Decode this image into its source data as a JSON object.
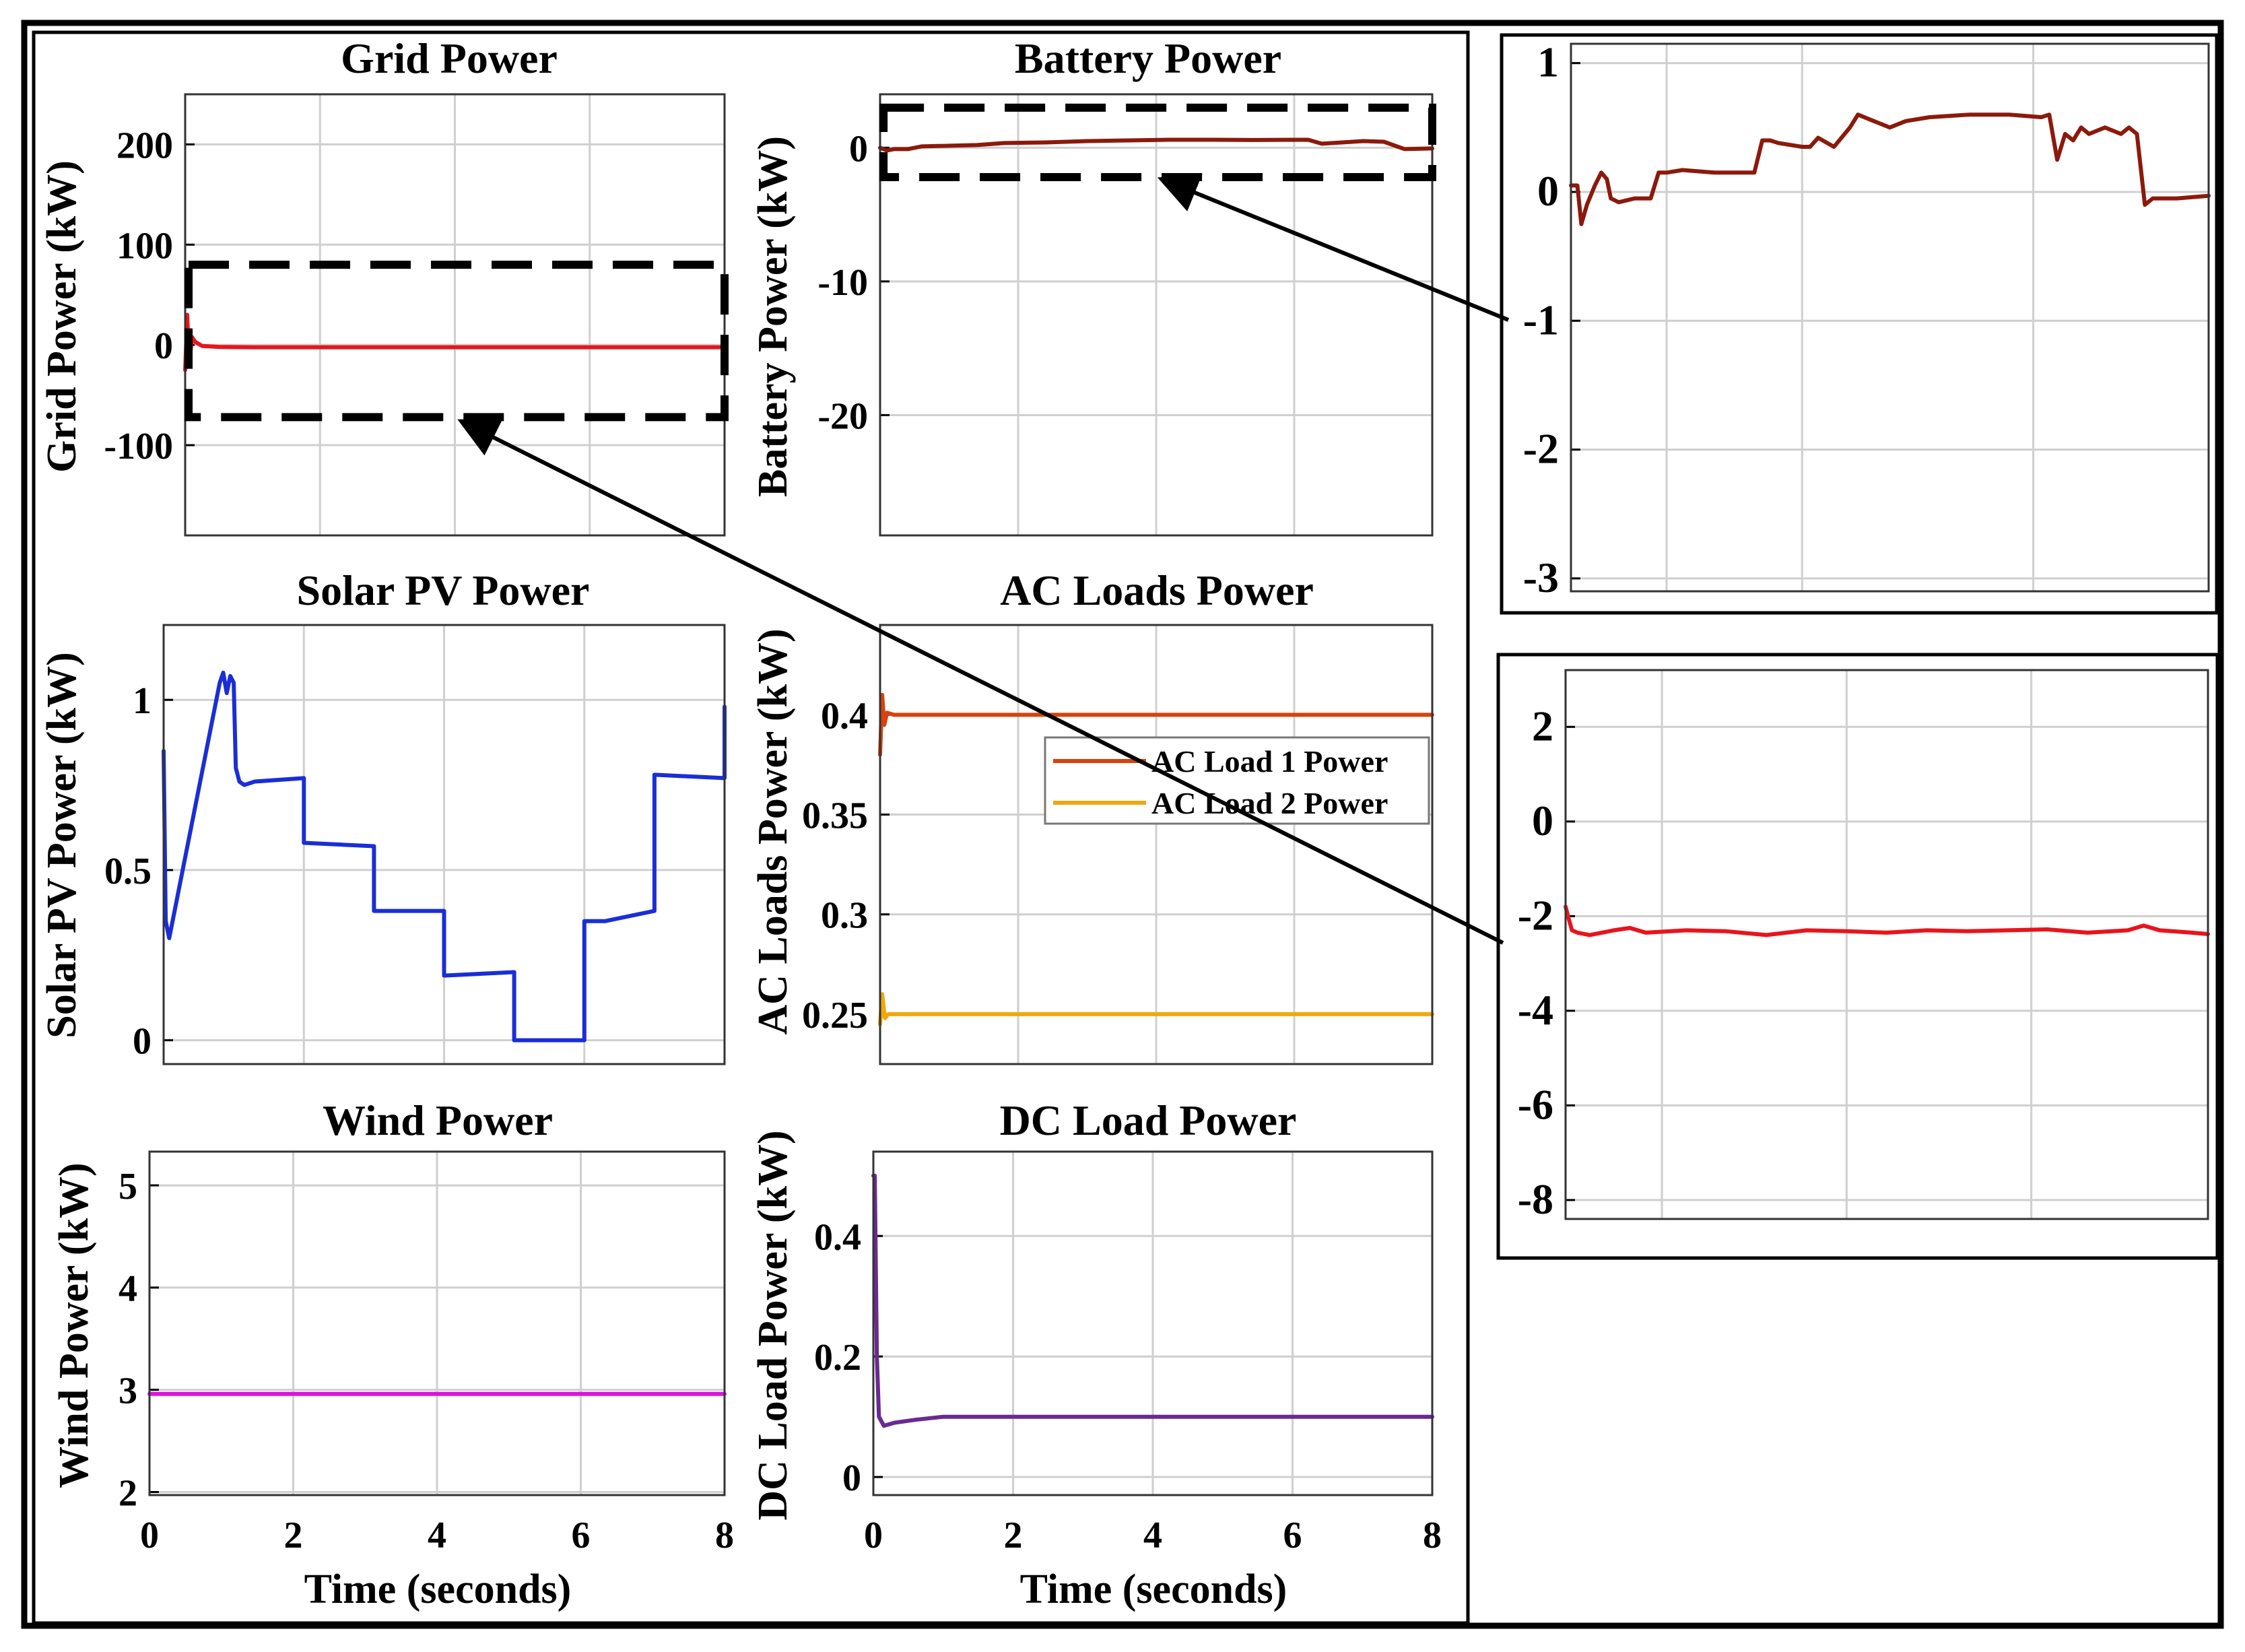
{
  "figure": {
    "panels": {
      "grid": {
        "title": "Grid Power",
        "ylabel": "Grid Power (kW)"
      },
      "battery": {
        "title": "Battery Power",
        "ylabel": "Battery Power (kW)"
      },
      "solar": {
        "title": "Solar PV Power",
        "ylabel": "Solar PV Power (kW)"
      },
      "ac": {
        "title": "AC Loads Power",
        "ylabel": "AC Loads Power (kW)"
      },
      "wind": {
        "title": "Wind Power",
        "ylabel": "Wind Power (kW)"
      },
      "dc": {
        "title": "DC Load Power",
        "ylabel": "DC Load Power (kW)"
      }
    },
    "xlabel": "Time (seconds)"
  },
  "chart_data": [
    {
      "id": "grid",
      "type": "line",
      "title": "Grid Power",
      "xlabel": "",
      "ylabel": "Grid Power (kW)",
      "xlim": [
        0,
        8
      ],
      "ylim": [
        -190,
        250
      ],
      "yticks": [
        -100,
        0,
        100,
        200
      ],
      "xticks": [
        0,
        2,
        4,
        6,
        8
      ],
      "grid": true,
      "series": [
        {
          "name": "Grid Power",
          "color": "#e8141c",
          "x": [
            0,
            0.03,
            0.06,
            0.1,
            0.15,
            0.25,
            0.5,
            1,
            2,
            4,
            6,
            8
          ],
          "y": [
            -25,
            30,
            -20,
            8,
            3,
            -1,
            -2,
            -2.3,
            -2.3,
            -2.3,
            -2.3,
            -2.3
          ]
        }
      ],
      "zoom_box": {
        "x": [
          0.05,
          8
        ],
        "y": [
          -72,
          80
        ]
      }
    },
    {
      "id": "battery",
      "type": "line",
      "title": "Battery Power",
      "xlabel": "",
      "ylabel": "Battery Power (kW)",
      "xlim": [
        0,
        8
      ],
      "ylim": [
        -29,
        4
      ],
      "yticks": [
        -20,
        -10,
        0
      ],
      "xticks": [
        0,
        2,
        4,
        6,
        8
      ],
      "grid": true,
      "series": [
        {
          "name": "Battery Power",
          "color": "#8b1a0c",
          "x": [
            0,
            0.1,
            0.2,
            0.4,
            0.6,
            1.0,
            1.4,
            1.8,
            2.4,
            3.0,
            3.6,
            4.2,
            4.8,
            5.4,
            6.2,
            6.4,
            7.0,
            7.3,
            7.6,
            8
          ],
          "y": [
            0,
            -0.2,
            -0.1,
            -0.1,
            0.1,
            0.15,
            0.2,
            0.35,
            0.4,
            0.5,
            0.55,
            0.6,
            0.6,
            0.58,
            0.6,
            0.3,
            0.5,
            0.45,
            -0.1,
            -0.05
          ]
        }
      ],
      "zoom_box": {
        "x": [
          0.05,
          8
        ],
        "y": [
          -2.2,
          3
        ]
      }
    },
    {
      "id": "solar",
      "type": "line",
      "title": "Solar PV Power",
      "xlabel": "",
      "ylabel": "Solar PV Power (kW)",
      "xlim": [
        0,
        8
      ],
      "ylim": [
        -0.07,
        1.22
      ],
      "yticks": [
        0,
        0.5,
        1
      ],
      "ytick_labels": [
        "0",
        "0.5",
        "1"
      ],
      "xticks": [
        0,
        2,
        4,
        6,
        8
      ],
      "grid": true,
      "series": [
        {
          "name": "Solar PV Power",
          "color": "#1a2ed6",
          "x": [
            0,
            0.03,
            0.08,
            0.8,
            0.85,
            0.9,
            0.95,
            1.0,
            1.03,
            1.08,
            1.15,
            1.3,
            2.0,
            2.0,
            3.0,
            3.0,
            4.0,
            4.0,
            5.0,
            5.0,
            6.0,
            6.0,
            6.3,
            7.0,
            7.0,
            8.0,
            8.0
          ],
          "y": [
            0.85,
            0.35,
            0.3,
            1.05,
            1.08,
            1.02,
            1.07,
            1.05,
            0.8,
            0.76,
            0.75,
            0.76,
            0.77,
            0.58,
            0.57,
            0.38,
            0.38,
            0.19,
            0.2,
            0.0,
            0.0,
            0.35,
            0.35,
            0.38,
            0.78,
            0.77,
            0.98
          ]
        }
      ]
    },
    {
      "id": "ac",
      "type": "line",
      "title": "AC Loads Power",
      "xlabel": "",
      "ylabel": "AC Loads Power (kW)",
      "xlim": [
        0,
        8
      ],
      "ylim": [
        0.225,
        0.445
      ],
      "yticks": [
        0.25,
        0.3,
        0.35,
        0.4
      ],
      "ytick_labels": [
        "0.25",
        "0.3",
        "0.35",
        "0.4"
      ],
      "xticks": [
        0,
        2,
        4,
        6,
        8
      ],
      "grid": true,
      "legend": {
        "location": "right",
        "entries": [
          "AC Load 1 Power",
          "AC Load 2 Power"
        ]
      },
      "series": [
        {
          "name": "AC Load 1 Power",
          "color": "#d5430e",
          "x": [
            0,
            0.03,
            0.06,
            0.1,
            0.2,
            8
          ],
          "y": [
            0.38,
            0.41,
            0.395,
            0.401,
            0.4,
            0.4
          ]
        },
        {
          "name": "AC Load 2 Power",
          "color": "#eea80f",
          "x": [
            0,
            0.03,
            0.07,
            0.12,
            8
          ],
          "y": [
            0.245,
            0.26,
            0.248,
            0.25,
            0.25
          ]
        }
      ]
    },
    {
      "id": "wind",
      "type": "line",
      "title": "Wind Power",
      "xlabel": "Time (seconds)",
      "ylabel": "Wind Power (kW)",
      "xlim": [
        0,
        8
      ],
      "ylim": [
        1.97,
        5.33
      ],
      "yticks": [
        2,
        3,
        4,
        5
      ],
      "xticks": [
        0,
        2,
        4,
        6,
        8
      ],
      "grid": true,
      "series": [
        {
          "name": "Wind Power",
          "color": "#e010e0",
          "x": [
            0,
            8
          ],
          "y": [
            2.96,
            2.96
          ]
        }
      ]
    },
    {
      "id": "dc",
      "type": "line",
      "title": "DC Load Power",
      "xlabel": "Time (seconds)",
      "ylabel": "DC Load Power (kW)",
      "xlim": [
        0,
        8
      ],
      "ylim": [
        -0.03,
        0.54
      ],
      "yticks": [
        0,
        0.2,
        0.4
      ],
      "ytick_labels": [
        "0",
        "0.2",
        "0.4"
      ],
      "xticks": [
        0,
        2,
        4,
        6,
        8
      ],
      "grid": true,
      "series": [
        {
          "name": "DC Load Power",
          "color": "#6a2a8f",
          "x": [
            0,
            0.02,
            0.05,
            0.08,
            0.15,
            0.3,
            0.6,
            1.0,
            8
          ],
          "y": [
            0.5,
            0.5,
            0.2,
            0.1,
            0.085,
            0.09,
            0.095,
            0.1,
            0.1
          ]
        }
      ]
    },
    {
      "id": "zoom_battery",
      "type": "line",
      "title": "",
      "xlabel": "",
      "ylabel": "",
      "xlim": [
        0,
        8
      ],
      "ylim": [
        -3.1,
        1.15
      ],
      "yticks": [
        -3,
        -2,
        -1,
        0,
        1
      ],
      "grid": true,
      "series": [
        {
          "name": "Battery Power (zoom)",
          "color": "#8b1a0c",
          "x": [
            0,
            0.08,
            0.13,
            0.2,
            0.3,
            0.38,
            0.45,
            0.5,
            0.6,
            0.8,
            1.0,
            1.1,
            1.2,
            1.4,
            1.8,
            2.3,
            2.4,
            2.5,
            2.6,
            2.9,
            3.0,
            3.1,
            3.3,
            3.5,
            3.6,
            3.8,
            4.0,
            4.2,
            4.5,
            5.0,
            5.5,
            5.9,
            6.0,
            6.1,
            6.2,
            6.3,
            6.4,
            6.5,
            6.7,
            6.9,
            7.0,
            7.1,
            7.2,
            7.3,
            7.6,
            8.0
          ],
          "y": [
            0.05,
            0.05,
            -0.25,
            -0.1,
            0.05,
            0.15,
            0.1,
            -0.05,
            -0.08,
            -0.05,
            -0.05,
            0.15,
            0.15,
            0.17,
            0.15,
            0.15,
            0.4,
            0.4,
            0.38,
            0.35,
            0.35,
            0.42,
            0.35,
            0.5,
            0.6,
            0.55,
            0.5,
            0.55,
            0.58,
            0.6,
            0.6,
            0.58,
            0.6,
            0.25,
            0.45,
            0.4,
            0.5,
            0.45,
            0.5,
            0.45,
            0.5,
            0.45,
            -0.1,
            -0.05,
            -0.05,
            -0.03
          ]
        }
      ]
    },
    {
      "id": "zoom_grid",
      "type": "line",
      "title": "",
      "xlabel": "",
      "ylabel": "",
      "xlim": [
        0,
        8
      ],
      "ylim": [
        -8.4,
        3.2
      ],
      "yticks": [
        -8,
        -6,
        -4,
        -2,
        0,
        2
      ],
      "grid": true,
      "series": [
        {
          "name": "Grid Power (zoom)",
          "color": "#e8141c",
          "x": [
            0,
            0.03,
            0.08,
            0.15,
            0.3,
            0.6,
            0.8,
            1.0,
            1.5,
            2.0,
            2.5,
            3.0,
            3.5,
            4.0,
            4.5,
            5.0,
            5.5,
            6.0,
            6.5,
            7.0,
            7.2,
            7.4,
            7.8,
            8.0
          ],
          "y": [
            -1.8,
            -2.0,
            -2.3,
            -2.35,
            -2.4,
            -2.3,
            -2.25,
            -2.35,
            -2.3,
            -2.32,
            -2.4,
            -2.3,
            -2.32,
            -2.35,
            -2.3,
            -2.32,
            -2.3,
            -2.28,
            -2.35,
            -2.3,
            -2.2,
            -2.3,
            -2.35,
            -2.38
          ]
        }
      ]
    }
  ]
}
